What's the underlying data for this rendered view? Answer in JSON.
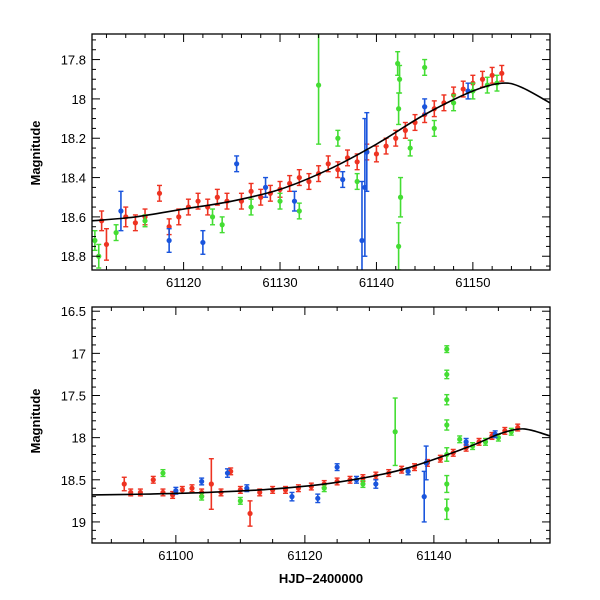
{
  "colors": {
    "red": "#ee3322",
    "green": "#44dd33",
    "blue": "#1a55dd",
    "curve": "#000000",
    "frame": "#000000"
  },
  "chart_data": [
    {
      "type": "scatter",
      "title": "",
      "xlabel": "",
      "ylabel": "Magnitude",
      "xlim": [
        61110.5,
        61158
      ],
      "ylim": [
        18.87,
        17.67
      ],
      "y_inverted": true,
      "xticks": [
        61120,
        61130,
        61140,
        61150
      ],
      "yticks": [
        17.8,
        18,
        18.2,
        18.4,
        18.6,
        18.8
      ],
      "ytick_labels": [
        "17.8",
        "18",
        "18.2",
        "18.4",
        "18.6",
        "18.8"
      ],
      "grid": false,
      "model_curve": {
        "x": [
          61110.5,
          61115,
          61120,
          61125,
          61130,
          61135,
          61140,
          61145,
          61150,
          61153,
          61155,
          61158
        ],
        "y": [
          18.62,
          18.6,
          18.56,
          18.52,
          18.46,
          18.36,
          18.23,
          18.08,
          17.96,
          17.92,
          17.94,
          18.02
        ]
      },
      "series": [
        {
          "name": "red",
          "color": "#ee3322",
          "points": [
            {
              "x": 61111.5,
              "y": 18.62,
              "err": 0.05
            },
            {
              "x": 61112,
              "y": 18.74,
              "err": 0.08
            },
            {
              "x": 61114,
              "y": 18.6,
              "err": 0.05
            },
            {
              "x": 61115,
              "y": 18.63,
              "err": 0.04
            },
            {
              "x": 61116,
              "y": 18.6,
              "err": 0.04
            },
            {
              "x": 61117.5,
              "y": 18.48,
              "err": 0.04
            },
            {
              "x": 61118.5,
              "y": 18.65,
              "err": 0.04
            },
            {
              "x": 61119.5,
              "y": 18.6,
              "err": 0.04
            },
            {
              "x": 61120.5,
              "y": 18.55,
              "err": 0.04
            },
            {
              "x": 61121.5,
              "y": 18.52,
              "err": 0.04
            },
            {
              "x": 61122.5,
              "y": 18.55,
              "err": 0.04
            },
            {
              "x": 61123.5,
              "y": 18.5,
              "err": 0.04
            },
            {
              "x": 61124.5,
              "y": 18.52,
              "err": 0.04
            },
            {
              "x": 61126,
              "y": 18.52,
              "err": 0.04
            },
            {
              "x": 61127,
              "y": 18.47,
              "err": 0.04
            },
            {
              "x": 61128,
              "y": 18.5,
              "err": 0.04
            },
            {
              "x": 61129,
              "y": 18.48,
              "err": 0.04
            },
            {
              "x": 61130,
              "y": 18.46,
              "err": 0.04
            },
            {
              "x": 61131,
              "y": 18.43,
              "err": 0.04
            },
            {
              "x": 61132,
              "y": 18.4,
              "err": 0.04
            },
            {
              "x": 61133,
              "y": 18.42,
              "err": 0.04
            },
            {
              "x": 61134,
              "y": 18.38,
              "err": 0.04
            },
            {
              "x": 61135,
              "y": 18.33,
              "err": 0.04
            },
            {
              "x": 61136,
              "y": 18.36,
              "err": 0.04
            },
            {
              "x": 61137,
              "y": 18.3,
              "err": 0.04
            },
            {
              "x": 61138,
              "y": 18.32,
              "err": 0.04
            },
            {
              "x": 61139,
              "y": 18.27,
              "err": 0.04
            },
            {
              "x": 61140,
              "y": 18.28,
              "err": 0.04
            },
            {
              "x": 61141,
              "y": 18.24,
              "err": 0.04
            },
            {
              "x": 61142,
              "y": 18.2,
              "err": 0.04
            },
            {
              "x": 61143,
              "y": 18.16,
              "err": 0.04
            },
            {
              "x": 61144,
              "y": 18.12,
              "err": 0.04
            },
            {
              "x": 61145,
              "y": 18.08,
              "err": 0.04
            },
            {
              "x": 61146,
              "y": 18.05,
              "err": 0.04
            },
            {
              "x": 61147,
              "y": 18.02,
              "err": 0.04
            },
            {
              "x": 61148,
              "y": 17.98,
              "err": 0.04
            },
            {
              "x": 61149,
              "y": 17.95,
              "err": 0.04
            },
            {
              "x": 61150,
              "y": 17.92,
              "err": 0.04
            },
            {
              "x": 61151,
              "y": 17.9,
              "err": 0.04
            },
            {
              "x": 61152,
              "y": 17.88,
              "err": 0.04
            },
            {
              "x": 61153,
              "y": 17.87,
              "err": 0.04
            }
          ]
        },
        {
          "name": "green",
          "color": "#44dd33",
          "points": [
            {
              "x": 61110.8,
              "y": 18.72,
              "err": 0.05
            },
            {
              "x": 61111.2,
              "y": 18.8,
              "err": 0.06
            },
            {
              "x": 61113,
              "y": 18.68,
              "err": 0.04
            },
            {
              "x": 61116,
              "y": 18.62,
              "err": 0.03
            },
            {
              "x": 61123,
              "y": 18.6,
              "err": 0.04
            },
            {
              "x": 61124,
              "y": 18.64,
              "err": 0.04
            },
            {
              "x": 61127,
              "y": 18.55,
              "err": 0.04
            },
            {
              "x": 61130,
              "y": 18.52,
              "err": 0.04
            },
            {
              "x": 61132,
              "y": 18.57,
              "err": 0.04
            },
            {
              "x": 61134,
              "y": 17.93,
              "err": 0.3
            },
            {
              "x": 61136,
              "y": 18.2,
              "err": 0.04
            },
            {
              "x": 61138,
              "y": 18.42,
              "err": 0.04
            },
            {
              "x": 61142.2,
              "y": 17.82,
              "err": 0.06
            },
            {
              "x": 61142.4,
              "y": 17.9,
              "err": 0.07
            },
            {
              "x": 61142.3,
              "y": 18.05,
              "err": 0.08
            },
            {
              "x": 61142.5,
              "y": 18.5,
              "err": 0.1
            },
            {
              "x": 61142.3,
              "y": 18.75,
              "err": 0.12
            },
            {
              "x": 61143.5,
              "y": 18.25,
              "err": 0.04
            },
            {
              "x": 61145,
              "y": 17.84,
              "err": 0.04
            },
            {
              "x": 61146,
              "y": 18.15,
              "err": 0.04
            },
            {
              "x": 61148,
              "y": 18.02,
              "err": 0.04
            },
            {
              "x": 61150,
              "y": 17.96,
              "err": 0.04
            },
            {
              "x": 61151.5,
              "y": 17.93,
              "err": 0.04
            },
            {
              "x": 61152.5,
              "y": 17.92,
              "err": 0.04
            }
          ]
        },
        {
          "name": "blue",
          "color": "#1a55dd",
          "points": [
            {
              "x": 61113.5,
              "y": 18.57,
              "err": 0.1
            },
            {
              "x": 61118.5,
              "y": 18.72,
              "err": 0.06
            },
            {
              "x": 61122,
              "y": 18.73,
              "err": 0.06
            },
            {
              "x": 61125.5,
              "y": 18.33,
              "err": 0.04
            },
            {
              "x": 61128.5,
              "y": 18.45,
              "err": 0.05
            },
            {
              "x": 61131.5,
              "y": 18.52,
              "err": 0.05
            },
            {
              "x": 61136.5,
              "y": 18.41,
              "err": 0.04
            },
            {
              "x": 61138.5,
              "y": 18.72,
              "err": 0.3
            },
            {
              "x": 61138.8,
              "y": 18.45,
              "err": 0.35
            },
            {
              "x": 61139,
              "y": 18.27,
              "err": 0.2
            },
            {
              "x": 61145,
              "y": 18.04,
              "err": 0.04
            },
            {
              "x": 61149.5,
              "y": 17.96,
              "err": 0.04
            }
          ]
        }
      ]
    },
    {
      "type": "scatter",
      "title": "",
      "xlabel": "HJD−2400000",
      "ylabel": "Magnitude",
      "xlim": [
        61087,
        61158
      ],
      "ylim": [
        19.25,
        16.45
      ],
      "y_inverted": true,
      "xticks": [
        61100,
        61120,
        61140
      ],
      "yticks": [
        16.5,
        17,
        17.5,
        18,
        18.5,
        19
      ],
      "ytick_labels": [
        "16.5",
        "17",
        "17.5",
        "18",
        "18.5",
        "19"
      ],
      "grid": false,
      "model_curve": {
        "x": [
          61087,
          61095,
          61105,
          61115,
          61125,
          61135,
          61145,
          61150,
          61153,
          61155,
          61158
        ],
        "y": [
          18.68,
          18.67,
          18.65,
          18.61,
          18.53,
          18.38,
          18.12,
          17.96,
          17.9,
          17.91,
          17.98
        ]
      },
      "series": [
        {
          "name": "red",
          "color": "#ee3322",
          "points": [
            {
              "x": 61092,
              "y": 18.55,
              "err": 0.08
            },
            {
              "x": 61093,
              "y": 18.65,
              "err": 0.04
            },
            {
              "x": 61094.5,
              "y": 18.65,
              "err": 0.04
            },
            {
              "x": 61096.5,
              "y": 18.5,
              "err": 0.04
            },
            {
              "x": 61098,
              "y": 18.65,
              "err": 0.04
            },
            {
              "x": 61099.5,
              "y": 18.68,
              "err": 0.04
            },
            {
              "x": 61101,
              "y": 18.62,
              "err": 0.04
            },
            {
              "x": 61102.5,
              "y": 18.6,
              "err": 0.04
            },
            {
              "x": 61104,
              "y": 18.65,
              "err": 0.04
            },
            {
              "x": 61105.5,
              "y": 18.55,
              "err": 0.3
            },
            {
              "x": 61107,
              "y": 18.65,
              "err": 0.04
            },
            {
              "x": 61108.5,
              "y": 18.4,
              "err": 0.04
            },
            {
              "x": 61110,
              "y": 18.62,
              "err": 0.04
            },
            {
              "x": 61111.5,
              "y": 18.9,
              "err": 0.15
            },
            {
              "x": 61113,
              "y": 18.65,
              "err": 0.04
            },
            {
              "x": 61115,
              "y": 18.62,
              "err": 0.04
            },
            {
              "x": 61117,
              "y": 18.62,
              "err": 0.04
            },
            {
              "x": 61119,
              "y": 18.6,
              "err": 0.04
            },
            {
              "x": 61121,
              "y": 18.58,
              "err": 0.04
            },
            {
              "x": 61123,
              "y": 18.55,
              "err": 0.04
            },
            {
              "x": 61125,
              "y": 18.52,
              "err": 0.04
            },
            {
              "x": 61127,
              "y": 18.5,
              "err": 0.04
            },
            {
              "x": 61129,
              "y": 18.48,
              "err": 0.04
            },
            {
              "x": 61131,
              "y": 18.45,
              "err": 0.04
            },
            {
              "x": 61133,
              "y": 18.42,
              "err": 0.04
            },
            {
              "x": 61135,
              "y": 18.38,
              "err": 0.04
            },
            {
              "x": 61137,
              "y": 18.35,
              "err": 0.04
            },
            {
              "x": 61139,
              "y": 18.3,
              "err": 0.04
            },
            {
              "x": 61141,
              "y": 18.25,
              "err": 0.04
            },
            {
              "x": 61143,
              "y": 18.18,
              "err": 0.04
            },
            {
              "x": 61145,
              "y": 18.12,
              "err": 0.04
            },
            {
              "x": 61147,
              "y": 18.05,
              "err": 0.04
            },
            {
              "x": 61149,
              "y": 17.98,
              "err": 0.04
            },
            {
              "x": 61151,
              "y": 17.92,
              "err": 0.04
            },
            {
              "x": 61153,
              "y": 17.88,
              "err": 0.04
            }
          ]
        },
        {
          "name": "green",
          "color": "#44dd33",
          "points": [
            {
              "x": 61098,
              "y": 18.42,
              "err": 0.04
            },
            {
              "x": 61104,
              "y": 18.7,
              "err": 0.04
            },
            {
              "x": 61110,
              "y": 18.75,
              "err": 0.04
            },
            {
              "x": 61123,
              "y": 18.6,
              "err": 0.04
            },
            {
              "x": 61129,
              "y": 18.55,
              "err": 0.04
            },
            {
              "x": 61134,
              "y": 17.93,
              "err": 0.4
            },
            {
              "x": 61136,
              "y": 18.4,
              "err": 0.04
            },
            {
              "x": 61142,
              "y": 16.95,
              "err": 0.04
            },
            {
              "x": 61142,
              "y": 17.25,
              "err": 0.05
            },
            {
              "x": 61142,
              "y": 17.55,
              "err": 0.06
            },
            {
              "x": 61142,
              "y": 17.85,
              "err": 0.06
            },
            {
              "x": 61142,
              "y": 18.2,
              "err": 0.08
            },
            {
              "x": 61142,
              "y": 18.55,
              "err": 0.1
            },
            {
              "x": 61142,
              "y": 18.85,
              "err": 0.12
            },
            {
              "x": 61144,
              "y": 18.02,
              "err": 0.04
            },
            {
              "x": 61146,
              "y": 18.1,
              "err": 0.04
            },
            {
              "x": 61148,
              "y": 18.05,
              "err": 0.04
            },
            {
              "x": 61150,
              "y": 18.0,
              "err": 0.04
            },
            {
              "x": 61152,
              "y": 17.93,
              "err": 0.04
            }
          ]
        },
        {
          "name": "blue",
          "color": "#1a55dd",
          "points": [
            {
              "x": 61100,
              "y": 18.63,
              "err": 0.04
            },
            {
              "x": 61104,
              "y": 18.52,
              "err": 0.04
            },
            {
              "x": 61108,
              "y": 18.42,
              "err": 0.05
            },
            {
              "x": 61111,
              "y": 18.6,
              "err": 0.04
            },
            {
              "x": 61118,
              "y": 18.7,
              "err": 0.05
            },
            {
              "x": 61122,
              "y": 18.72,
              "err": 0.05
            },
            {
              "x": 61125,
              "y": 18.35,
              "err": 0.04
            },
            {
              "x": 61128,
              "y": 18.5,
              "err": 0.04
            },
            {
              "x": 61131,
              "y": 18.55,
              "err": 0.05
            },
            {
              "x": 61136,
              "y": 18.4,
              "err": 0.04
            },
            {
              "x": 61138.5,
              "y": 18.7,
              "err": 0.3
            },
            {
              "x": 61138.8,
              "y": 18.3,
              "err": 0.2
            },
            {
              "x": 61145,
              "y": 18.05,
              "err": 0.04
            },
            {
              "x": 61149.5,
              "y": 17.96,
              "err": 0.04
            }
          ]
        }
      ]
    }
  ]
}
